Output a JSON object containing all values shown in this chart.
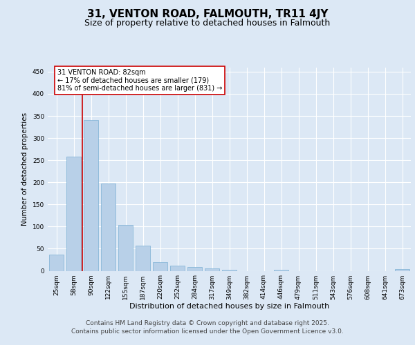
{
  "title": "31, VENTON ROAD, FALMOUTH, TR11 4JY",
  "subtitle": "Size of property relative to detached houses in Falmouth",
  "xlabel": "Distribution of detached houses by size in Falmouth",
  "ylabel": "Number of detached properties",
  "categories": [
    "25sqm",
    "58sqm",
    "90sqm",
    "122sqm",
    "155sqm",
    "187sqm",
    "220sqm",
    "252sqm",
    "284sqm",
    "317sqm",
    "349sqm",
    "382sqm",
    "414sqm",
    "446sqm",
    "479sqm",
    "511sqm",
    "543sqm",
    "576sqm",
    "608sqm",
    "641sqm",
    "673sqm"
  ],
  "values": [
    37,
    258,
    341,
    197,
    103,
    57,
    19,
    11,
    8,
    5,
    2,
    0,
    0,
    3,
    0,
    0,
    0,
    0,
    0,
    0,
    4
  ],
  "bar_color": "#b8d0e8",
  "bar_edge_color": "#7aafd4",
  "vline_x": 1.5,
  "vline_color": "#cc0000",
  "annotation_text": "31 VENTON ROAD: 82sqm\n← 17% of detached houses are smaller (179)\n81% of semi-detached houses are larger (831) →",
  "annotation_box_edge_color": "#cc0000",
  "ylim": [
    0,
    460
  ],
  "yticks": [
    0,
    50,
    100,
    150,
    200,
    250,
    300,
    350,
    400,
    450
  ],
  "background_color": "#dce8f5",
  "grid_color": "#ffffff",
  "footer_line1": "Contains HM Land Registry data © Crown copyright and database right 2025.",
  "footer_line2": "Contains public sector information licensed under the Open Government Licence v3.0.",
  "title_fontsize": 11,
  "subtitle_fontsize": 9,
  "annotation_fontsize": 7,
  "footer_fontsize": 6.5,
  "tick_fontsize": 6.5,
  "ylabel_fontsize": 7.5,
  "xlabel_fontsize": 8
}
